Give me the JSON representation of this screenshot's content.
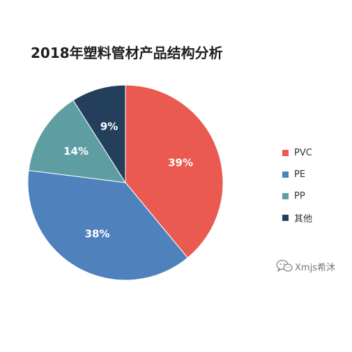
{
  "chart_data": {
    "type": "pie",
    "title": "2018年塑料管材产品结构分析",
    "series": [
      {
        "name": "PVC",
        "value": 39,
        "label": "39%",
        "color": "#eb5a50"
      },
      {
        "name": "PE",
        "value": 38,
        "label": "38%",
        "color": "#4f81bd"
      },
      {
        "name": "PP",
        "value": 14,
        "label": "14%",
        "color": "#5e9ea3"
      },
      {
        "name": "其他",
        "value": 9,
        "label": "9%",
        "color": "#243f5c"
      }
    ],
    "legend_position": "right"
  },
  "watermark": {
    "text": "Xmjs希沐",
    "icon": "wechat-icon"
  }
}
